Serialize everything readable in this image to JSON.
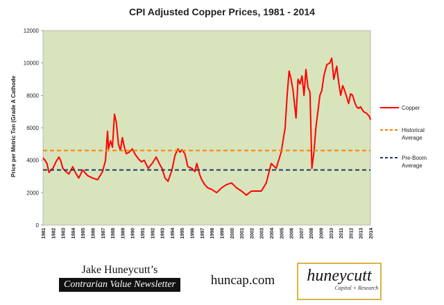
{
  "chart_data": {
    "type": "line",
    "title": "CPI Adjusted Copper Prices, 1981 - 2014",
    "ylabel": "Price per Metric Ton (Grade A Cathode",
    "xlabel": "",
    "ylim": [
      0,
      12000
    ],
    "yticks": [
      0,
      2000,
      4000,
      6000,
      8000,
      10000,
      12000
    ],
    "xlim": [
      1981,
      2014
    ],
    "xticks": [
      "1981",
      "1982",
      "1983",
      "1984",
      "1985",
      "1986",
      "1987",
      "1988",
      "1989",
      "1990",
      "1991",
      "1992",
      "1993",
      "1994",
      "1995",
      "1996",
      "1997",
      "1998",
      "1999",
      "2000",
      "2001",
      "2002",
      "2003",
      "2004",
      "2005",
      "2006",
      "2007",
      "2008",
      "2009",
      "2010",
      "2011",
      "2012",
      "2013",
      "2014"
    ],
    "grid": false,
    "legend_position": "right",
    "background": "#d8e4bc",
    "series": [
      {
        "name": "Copper",
        "color": "#ff0000",
        "x": [
          1981.0,
          1981.2,
          1981.4,
          1981.6,
          1981.8,
          1982.0,
          1982.3,
          1982.6,
          1982.8,
          1983.0,
          1983.3,
          1983.6,
          1984.0,
          1984.3,
          1984.6,
          1985.0,
          1985.5,
          1986.0,
          1986.5,
          1987.0,
          1987.3,
          1987.5,
          1987.6,
          1987.8,
          1988.0,
          1988.2,
          1988.4,
          1988.6,
          1988.8,
          1989.0,
          1989.2,
          1989.4,
          1989.7,
          1990.0,
          1990.3,
          1990.6,
          1990.9,
          1991.2,
          1991.6,
          1992.0,
          1992.4,
          1992.8,
          1993.0,
          1993.3,
          1993.6,
          1994.0,
          1994.3,
          1994.6,
          1994.8,
          1995.0,
          1995.3,
          1995.6,
          1996.0,
          1996.3,
          1996.5,
          1996.8,
          1997.0,
          1997.3,
          1997.6,
          1998.0,
          1998.5,
          1999.0,
          1999.5,
          2000.0,
          2000.5,
          2001.0,
          2001.5,
          2002.0,
          2002.5,
          2003.0,
          2003.5,
          2004.0,
          2004.5,
          2005.0,
          2005.4,
          2005.6,
          2005.8,
          2006.0,
          2006.2,
          2006.5,
          2006.7,
          2006.9,
          2007.1,
          2007.3,
          2007.5,
          2007.7,
          2007.9,
          2008.1,
          2008.3,
          2008.5,
          2008.7,
          2008.9,
          2009.1,
          2009.3,
          2009.6,
          2009.9,
          2010.1,
          2010.3,
          2010.6,
          2010.8,
          2011.0,
          2011.2,
          2011.4,
          2011.6,
          2011.8,
          2012.0,
          2012.2,
          2012.4,
          2012.6,
          2012.8,
          2013.0,
          2013.3,
          2013.6,
          2013.9,
          2014.0
        ],
        "values": [
          4150,
          4000,
          3800,
          3250,
          3400,
          3500,
          3900,
          4200,
          3950,
          3500,
          3300,
          3150,
          3600,
          3200,
          2900,
          3400,
          3050,
          2900,
          2800,
          3300,
          4000,
          5800,
          4700,
          5200,
          4800,
          6850,
          6300,
          5000,
          4600,
          5400,
          4800,
          4400,
          4500,
          4700,
          4350,
          4100,
          3900,
          4000,
          3500,
          3800,
          4200,
          3700,
          3500,
          2900,
          2700,
          3400,
          4300,
          4700,
          4500,
          4650,
          4400,
          3600,
          3500,
          3300,
          3800,
          3100,
          2800,
          2500,
          2300,
          2200,
          2000,
          2300,
          2500,
          2600,
          2300,
          2100,
          1850,
          2100,
          2100,
          2100,
          2600,
          3800,
          3500,
          4500,
          6000,
          8000,
          9500,
          9000,
          8300,
          6600,
          9000,
          8700,
          9200,
          8000,
          9600,
          8500,
          8200,
          3500,
          4500,
          6000,
          7000,
          8000,
          8300,
          9200,
          9900,
          10000,
          10300,
          9000,
          9800,
          8800,
          8000,
          8600,
          8300,
          7900,
          7500,
          8100,
          8000,
          7600,
          7300,
          7200,
          7300,
          7000,
          6900,
          6700,
          6500
        ]
      },
      {
        "name": "Historical Average",
        "color": "#ff7f00",
        "dash": true,
        "constant": 4600
      },
      {
        "name": "Pre-Boom Average",
        "color": "#1f3864",
        "dash": true,
        "constant": 3400
      }
    ]
  },
  "footer": {
    "author_name": "Jake Huneycutt’s",
    "newsletter": "Contrarian Value Newsletter",
    "website": "huncap.com",
    "logo_brand": "huneycutt",
    "logo_sub": "Capital + Research"
  }
}
